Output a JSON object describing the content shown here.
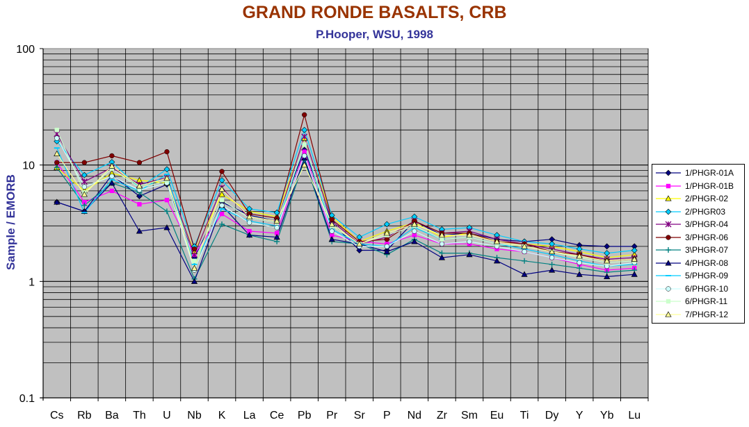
{
  "chart_data": {
    "type": "line",
    "title": "GRAND RONDE BASALTS, CRB",
    "subtitle": "P.Hooper, WSU, 1998",
    "ylabel": "Sample / EMORB",
    "xlabel": "",
    "yscale": "log",
    "ylim": [
      0.1,
      100
    ],
    "yticks": [
      "0.1",
      "1",
      "10",
      "100"
    ],
    "categories": [
      "Cs",
      "Rb",
      "Ba",
      "Th",
      "U",
      "Nb",
      "K",
      "La",
      "Ce",
      "Pb",
      "Pr",
      "Sr",
      "P",
      "Nd",
      "Zr",
      "Sm",
      "Eu",
      "Ti",
      "Dy",
      "Y",
      "Yb",
      "Lu"
    ],
    "grid": true,
    "legend_position": "right",
    "series": [
      {
        "name": "1/PHGR-01A",
        "color": "#000080",
        "marker": "diamond",
        "values": [
          4.8,
          4.0,
          8.2,
          5.4,
          6.8,
          1.6,
          4.8,
          3.7,
          3.3,
          13.5,
          3.2,
          1.85,
          1.85,
          3.3,
          2.5,
          2.6,
          2.3,
          2.2,
          2.3,
          2.05,
          2.0,
          2.0
        ]
      },
      {
        "name": "1/PHGR-01B",
        "color": "#FF00FF",
        "marker": "square",
        "values": [
          10.5,
          4.8,
          6.0,
          4.6,
          5.0,
          1.7,
          3.8,
          2.7,
          2.6,
          13.0,
          2.5,
          2.2,
          2.1,
          2.5,
          2.1,
          2.1,
          1.9,
          1.8,
          1.6,
          1.4,
          1.25,
          1.3
        ]
      },
      {
        "name": "2/PHGR-02",
        "color": "#FFFF00",
        "marker": "triangle",
        "values": [
          9.5,
          6.0,
          8.5,
          7.4,
          7.0,
          1.8,
          5.6,
          4.0,
          3.6,
          17.0,
          3.6,
          2.2,
          2.7,
          3.2,
          2.4,
          2.6,
          2.2,
          2.1,
          2.0,
          1.8,
          1.6,
          1.7
        ]
      },
      {
        "name": "2/PHGR03",
        "color": "#00CCFF",
        "marker": "diamond",
        "values": [
          16.0,
          8.2,
          10.6,
          6.4,
          9.2,
          2.0,
          7.4,
          4.2,
          3.9,
          20.0,
          3.7,
          2.4,
          3.1,
          3.6,
          2.8,
          2.9,
          2.5,
          2.2,
          2.1,
          1.9,
          1.75,
          1.85
        ]
      },
      {
        "name": "3/PHGR-04",
        "color": "#800080",
        "marker": "star",
        "values": [
          18.5,
          7.2,
          9.5,
          6.8,
          7.8,
          1.7,
          6.4,
          3.5,
          3.2,
          17.5,
          3.3,
          2.1,
          2.4,
          3.3,
          2.6,
          2.7,
          2.3,
          2.1,
          1.9,
          1.7,
          1.55,
          1.6
        ]
      },
      {
        "name": "3/PHGR-06",
        "color": "#800000",
        "marker": "circle",
        "values": [
          10.5,
          10.5,
          12.0,
          10.5,
          13.0,
          1.9,
          8.8,
          3.8,
          3.5,
          27.0,
          3.4,
          2.2,
          2.3,
          3.3,
          2.6,
          2.6,
          2.2,
          2.1,
          1.8,
          1.7,
          1.5,
          1.55
        ]
      },
      {
        "name": "3\\PHGR-07",
        "color": "#008080",
        "marker": "plus",
        "values": [
          9.5,
          4.5,
          7.0,
          5.8,
          4.0,
          1.05,
          3.1,
          2.5,
          2.2,
          11.0,
          2.2,
          2.1,
          1.7,
          2.3,
          1.75,
          1.75,
          1.6,
          1.5,
          1.4,
          1.3,
          1.2,
          1.25
        ]
      },
      {
        "name": "4/PHGR-08",
        "color": "#000080",
        "marker": "triangle",
        "values": [
          4.8,
          4.0,
          7.0,
          2.7,
          2.9,
          1.0,
          4.5,
          2.5,
          2.4,
          11.5,
          2.3,
          2.1,
          1.8,
          2.2,
          1.6,
          1.7,
          1.5,
          1.15,
          1.25,
          1.15,
          1.1,
          1.15
        ]
      },
      {
        "name": "5/PHGR-09",
        "color": "#00CCFF",
        "marker": "dash",
        "values": [
          14.0,
          3.9,
          7.5,
          6.0,
          8.3,
          1.4,
          4.2,
          3.3,
          3.0,
          15.0,
          2.8,
          2.1,
          2.0,
          2.9,
          2.3,
          2.4,
          2.1,
          1.9,
          1.7,
          1.5,
          1.35,
          1.4
        ]
      },
      {
        "name": "6/PHGR-10",
        "color": "#CCFFFF",
        "marker": "circle",
        "values": [
          17.0,
          6.5,
          8.0,
          6.1,
          7.0,
          1.25,
          4.5,
          3.2,
          2.9,
          12.0,
          2.7,
          2.0,
          2.0,
          2.7,
          2.1,
          2.2,
          2.0,
          1.8,
          1.6,
          1.45,
          1.35,
          1.45
        ]
      },
      {
        "name": "6/PHGR-11",
        "color": "#CCFFCC",
        "marker": "square",
        "values": [
          20.0,
          5.8,
          9.3,
          6.4,
          7.3,
          1.5,
          5.0,
          3.5,
          3.2,
          15.0,
          3.0,
          2.1,
          2.5,
          3.0,
          2.3,
          2.4,
          2.1,
          2.0,
          1.8,
          1.6,
          1.45,
          1.5
        ]
      },
      {
        "name": "7/PHGR-12",
        "color": "#FFFF99",
        "marker": "triangle",
        "values": [
          12.5,
          5.6,
          9.8,
          6.6,
          7.7,
          1.3,
          6.2,
          3.6,
          3.3,
          10.0,
          3.1,
          2.1,
          2.6,
          3.1,
          2.5,
          2.5,
          2.2,
          2.0,
          1.8,
          1.65,
          1.5,
          1.55
        ]
      }
    ]
  }
}
